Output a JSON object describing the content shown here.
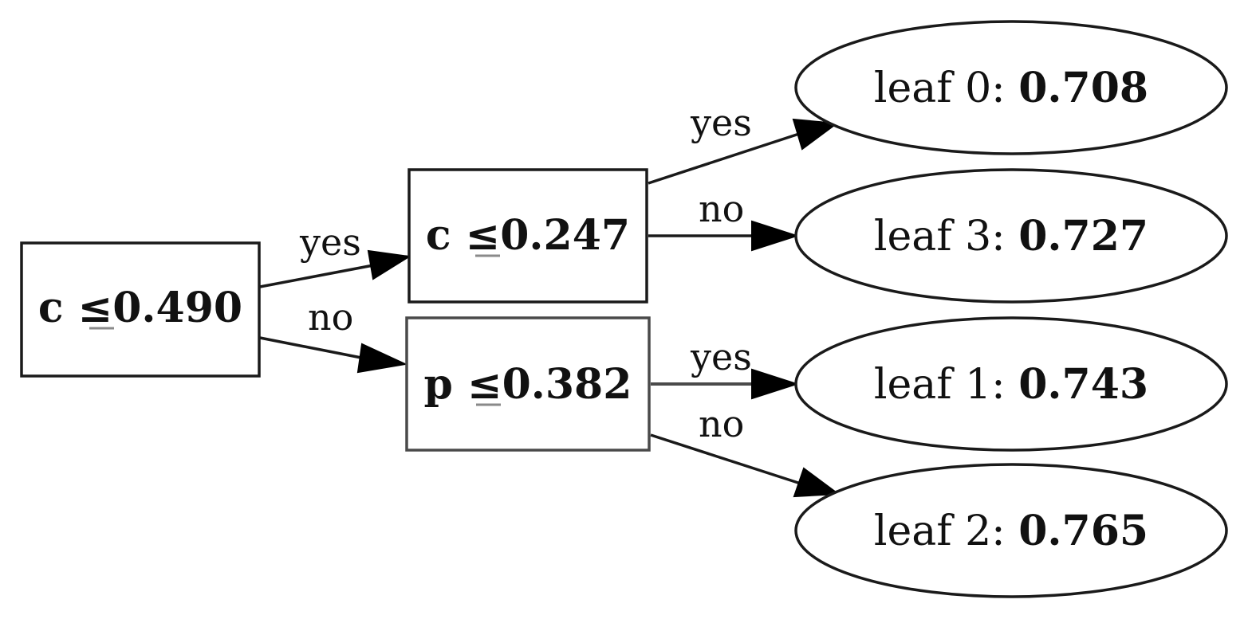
{
  "tree": {
    "splits": [
      {
        "id": "root",
        "feature": "c",
        "operator": "≤",
        "threshold": "0.490"
      },
      {
        "id": "left",
        "feature": "c",
        "operator": "≤",
        "threshold": "0.247"
      },
      {
        "id": "right",
        "feature": "p",
        "operator": "≤",
        "threshold": "0.382"
      }
    ],
    "leaves": [
      {
        "id": "leaf0",
        "label": "leaf 0: ",
        "value": "0.708"
      },
      {
        "id": "leaf3",
        "label": "leaf 3: ",
        "value": "0.727"
      },
      {
        "id": "leaf1",
        "label": "leaf 1: ",
        "value": "0.743"
      },
      {
        "id": "leaf2",
        "label": "leaf 2: ",
        "value": "0.765"
      }
    ],
    "edges": [
      {
        "from": "root",
        "to": "left",
        "label": "yes"
      },
      {
        "from": "root",
        "to": "right",
        "label": "no"
      },
      {
        "from": "left",
        "to": "leaf0",
        "label": "yes"
      },
      {
        "from": "left",
        "to": "leaf3",
        "label": "no"
      },
      {
        "from": "right",
        "to": "leaf1",
        "label": "yes"
      },
      {
        "from": "right",
        "to": "leaf2",
        "label": "no"
      }
    ]
  }
}
